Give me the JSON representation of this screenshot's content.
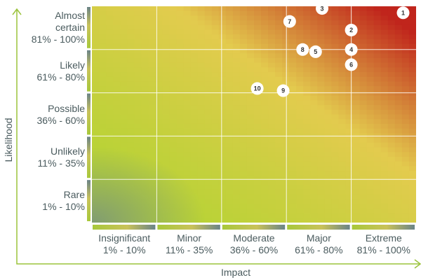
{
  "chart_data": {
    "type": "scatter",
    "title": "",
    "xlabel": "Impact",
    "ylabel": "Likelihood",
    "x_categories": [
      {
        "name": "Insignificant",
        "range": "1% - 10%"
      },
      {
        "name": "Minor",
        "range": "11% - 35%"
      },
      {
        "name": "Moderate",
        "range": "36% - 60%"
      },
      {
        "name": "Major",
        "range": "61% - 80%"
      },
      {
        "name": "Extreme",
        "range": "81% - 100%"
      }
    ],
    "y_categories": [
      {
        "name_lines": [
          "Rare"
        ],
        "range": "1% - 10%"
      },
      {
        "name_lines": [
          "Unlikely"
        ],
        "range": "11% - 35%"
      },
      {
        "name_lines": [
          "Possible"
        ],
        "range": "36% - 60%"
      },
      {
        "name_lines": [
          "Likely"
        ],
        "range": "61% - 80%"
      },
      {
        "name_lines": [
          "Almost",
          "certain"
        ],
        "range": "81% - 100%"
      }
    ],
    "points": [
      {
        "label": "1",
        "impact": 96,
        "likelihood": 97
      },
      {
        "label": "2",
        "impact": 80,
        "likelihood": 89
      },
      {
        "label": "3",
        "impact": 71,
        "likelihood": 99
      },
      {
        "label": "4",
        "impact": 80,
        "likelihood": 80
      },
      {
        "label": "5",
        "impact": 69,
        "likelihood": 79
      },
      {
        "label": "6",
        "impact": 80,
        "likelihood": 73
      },
      {
        "label": "7",
        "impact": 61,
        "likelihood": 93
      },
      {
        "label": "8",
        "impact": 65,
        "likelihood": 80
      },
      {
        "label": "9",
        "impact": 59,
        "likelihood": 61
      },
      {
        "label": "10",
        "impact": 51,
        "likelihood": 62
      }
    ],
    "colors": {
      "low": "#b5d334",
      "mid": "#e3cb4e",
      "high": "#c0251c",
      "axis": "#9bc33c",
      "text": "#4a5b5e",
      "grid": "#ffffff"
    }
  }
}
